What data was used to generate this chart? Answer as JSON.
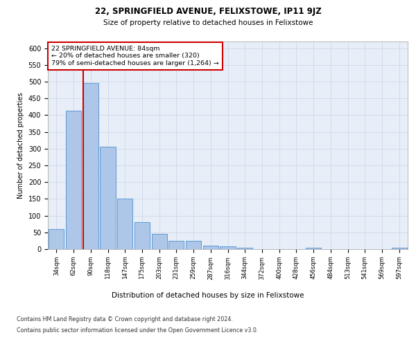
{
  "title1": "22, SPRINGFIELD AVENUE, FELIXSTOWE, IP11 9JZ",
  "title2": "Size of property relative to detached houses in Felixstowe",
  "xlabel": "Distribution of detached houses by size in Felixstowe",
  "ylabel": "Number of detached properties",
  "categories": [
    "34sqm",
    "62sqm",
    "90sqm",
    "118sqm",
    "147sqm",
    "175sqm",
    "203sqm",
    "231sqm",
    "259sqm",
    "287sqm",
    "316sqm",
    "344sqm",
    "372sqm",
    "400sqm",
    "428sqm",
    "456sqm",
    "484sqm",
    "513sqm",
    "541sqm",
    "569sqm",
    "597sqm"
  ],
  "values": [
    60,
    413,
    497,
    305,
    150,
    80,
    46,
    25,
    25,
    10,
    8,
    5,
    0,
    0,
    0,
    5,
    0,
    0,
    0,
    0,
    5
  ],
  "bar_color": "#aec6e8",
  "bar_edge_color": "#5b9bd5",
  "grid_color": "#d0d8e8",
  "background_color": "#ffffff",
  "plot_bg_color": "#e8eef8",
  "vline_x_index": 2,
  "vline_color": "#cc0000",
  "annotation_text": "22 SPRINGFIELD AVENUE: 84sqm\n← 20% of detached houses are smaller (320)\n79% of semi-detached houses are larger (1,264) →",
  "annotation_box_color": "#ffffff",
  "annotation_box_edge": "#cc0000",
  "ylim": [
    0,
    620
  ],
  "yticks": [
    0,
    50,
    100,
    150,
    200,
    250,
    300,
    350,
    400,
    450,
    500,
    550,
    600
  ],
  "footer_line1": "Contains HM Land Registry data © Crown copyright and database right 2024.",
  "footer_line2": "Contains public sector information licensed under the Open Government Licence v3.0."
}
